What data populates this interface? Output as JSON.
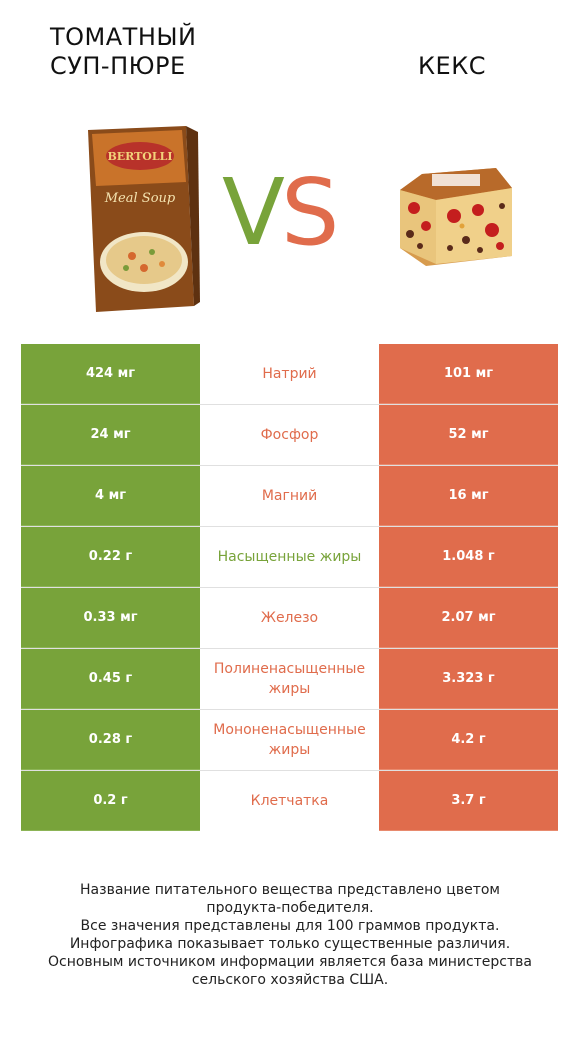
{
  "header": {
    "left_title": "ТОМАТНЫЙ СУП-ПЮРЕ",
    "right_title": "КЕКС",
    "vs_v": "V",
    "vs_s": "S"
  },
  "colors": {
    "left": "#78a33a",
    "right": "#e06c4c"
  },
  "images": {
    "left": "soup-box-image",
    "right": "fruitcake-image"
  },
  "rows": [
    {
      "left": "424 мг",
      "nutrient": "Натрий",
      "right": "101 мг",
      "winner": "right"
    },
    {
      "left": "24 мг",
      "nutrient": "Фосфор",
      "right": "52 мг",
      "winner": "right"
    },
    {
      "left": "4 мг",
      "nutrient": "Магний",
      "right": "16 мг",
      "winner": "right"
    },
    {
      "left": "0.22 г",
      "nutrient": "Насыщенные жиры",
      "right": "1.048 г",
      "winner": "left"
    },
    {
      "left": "0.33 мг",
      "nutrient": "Железо",
      "right": "2.07 мг",
      "winner": "right"
    },
    {
      "left": "0.45 г",
      "nutrient": "Полиненасыщенные жиры",
      "right": "3.323 г",
      "winner": "right"
    },
    {
      "left": "0.28 г",
      "nutrient": "Мононенасыщенные жиры",
      "right": "4.2 г",
      "winner": "right"
    },
    {
      "left": "0.2 г",
      "nutrient": "Клетчатка",
      "right": "3.7 г",
      "winner": "right"
    }
  ],
  "footer": {
    "line1": "Название питательного вещества представлено цветом",
    "line2": "продукта-победителя.",
    "line3": "Все значения представлены для 100 граммов продукта.",
    "line4": "Инфографика показывает только существенные различия.",
    "line5": "Основным источником информации является база министерства",
    "line6": "сельского хозяйства США."
  }
}
